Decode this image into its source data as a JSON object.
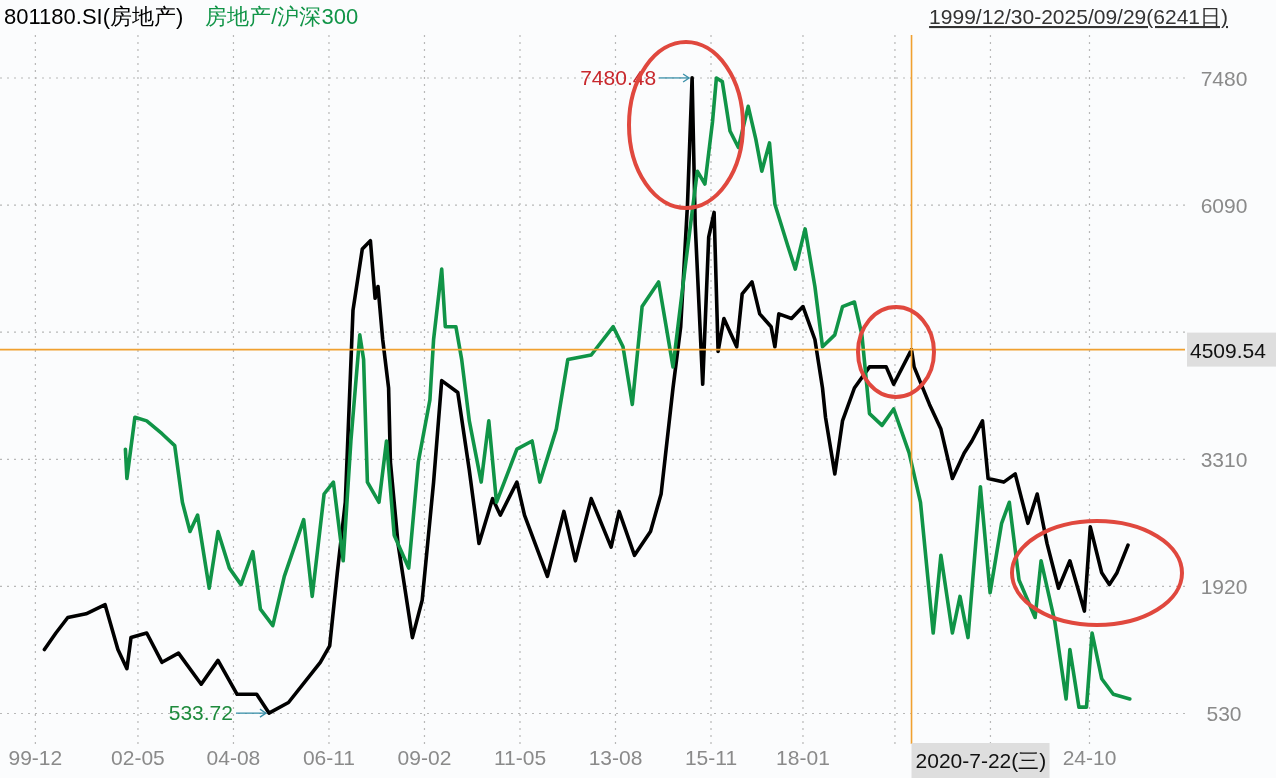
{
  "chart_data": {
    "type": "line",
    "series": [
      {
        "name": "801180.SI(房地产)",
        "color": "#000000",
        "x": [
          "2000-02-18",
          "2000-05-25",
          "2000-09-06",
          "2001-02-11",
          "2001-07-23",
          "2001-11-11",
          "2002-01-28",
          "2002-03-02",
          "2002-07-15",
          "2002-11-25",
          "2003-04-15",
          "2003-10-28",
          "2004-03-20",
          "2004-09-02",
          "2005-02-18",
          "2005-06-02",
          "2005-11-18",
          "2006-08-18",
          "2006-11-07",
          "2007-01-12",
          "2007-03-20",
          "2007-05-25",
          "2007-08-14",
          "2007-10-23",
          "2007-12-02",
          "2007-12-27",
          "2008-02-07",
          "2008-03-27",
          "2008-04-12",
          "2008-06-17",
          "2008-10-19",
          "2009-01-12",
          "2009-04-19",
          "2009-06-27",
          "2009-11-14",
          "2010-02-21",
          "2010-05-14",
          "2010-09-09",
          "2010-11-14",
          "2011-04-05",
          "2011-06-09",
          "2011-12-24",
          "2012-05-14",
          "2012-08-21",
          "2013-01-05",
          "2013-06-24",
          "2013-09-02",
          "2014-01-12",
          "2014-05-28",
          "2014-08-28",
          "2014-12-09",
          "2015-02-14",
          "2015-04-12",
          "2015-05-21",
          "2015-06-17",
          "2015-08-21",
          "2015-10-12",
          "2015-11-28",
          "2016-01-01",
          "2016-02-21",
          "2016-06-09",
          "2016-07-26",
          "2016-10-19",
          "2016-12-24",
          "2017-04-01",
          "2017-05-03",
          "2017-06-06",
          "2017-09-24",
          "2018-01-01",
          "2018-04-12",
          "2018-06-17",
          "2018-07-12",
          "2018-10-01",
          "2018-12-06",
          "2019-03-17",
          "2019-07-26",
          "2019-12-17",
          "2020-02-21",
          "2020-07-22",
          "2020-08-14",
          "2020-12-24",
          "2021-04-01",
          "2021-07-08",
          "2021-10-19",
          "2021-12-24",
          "2022-03-24",
          "2022-05-11",
          "2022-09-24",
          "2023-01-01",
          "2023-04-19",
          "2023-07-08",
          "2023-10-01",
          "2024-01-08",
          "2024-04-15",
          "2024-08-18",
          "2024-10-08",
          "2025-01-15",
          "2025-03-20",
          "2025-05-25",
          "2025-08-28"
        ],
        "values": [
          1230,
          1410,
          1580,
          1620,
          1720,
          1230,
          1020,
          1360,
          1410,
          1090,
          1190,
          850,
          1110,
          740,
          740,
          533.72,
          650,
          1090,
          1270,
          2070,
          2840,
          4940,
          5610,
          5700,
          5070,
          5200,
          4620,
          4090,
          3280,
          2390,
          1360,
          1770,
          3060,
          4170,
          4040,
          3190,
          2390,
          2880,
          2700,
          3060,
          2700,
          2030,
          2740,
          2200,
          2880,
          2350,
          2740,
          2260,
          2520,
          2930,
          4090,
          4760,
          6100,
          7480.48,
          5880,
          4130,
          5740,
          6010,
          4490,
          4850,
          4540,
          5120,
          5250,
          4900,
          4760,
          4540,
          4900,
          4850,
          4980,
          4620,
          4090,
          3770,
          3150,
          3730,
          4090,
          4320,
          4320,
          4130,
          4509.54,
          4320,
          3910,
          3640,
          3100,
          3380,
          3510,
          3730,
          3100,
          3060,
          3150,
          2610,
          2930,
          2390,
          1900,
          2200,
          1650,
          2570,
          2070,
          1940,
          2070,
          2370
        ]
      },
      {
        "name": "房地产/沪深300",
        "color": "#109447",
        "x": [
          "2002-01-15",
          "2002-01-28",
          "2002-04-05",
          "2002-07-15",
          "2002-11-25",
          "2003-03-13",
          "2003-05-18",
          "2003-07-23",
          "2003-09-27",
          "2004-01-05",
          "2004-03-20",
          "2004-06-27",
          "2004-10-05",
          "2005-01-15",
          "2005-03-20",
          "2005-07-05",
          "2005-10-12",
          "2006-03-27",
          "2006-06-09",
          "2006-09-20",
          "2006-12-09",
          "2007-03-02",
          "2007-05-07",
          "2007-07-23",
          "2007-08-25",
          "2007-09-27",
          "2008-01-05",
          "2008-03-09",
          "2008-05-14",
          "2008-09-17",
          "2008-12-09",
          "2009-03-17",
          "2009-04-19",
          "2009-06-27",
          "2009-07-28",
          "2009-10-28",
          "2009-12-17",
          "2010-02-21",
          "2010-06-02",
          "2010-08-07",
          "2010-10-12",
          "2011-04-05",
          "2011-08-14",
          "2011-10-19",
          "2012-03-09",
          "2012-06-17",
          "2013-01-05",
          "2013-07-12",
          "2013-10-05",
          "2013-12-24",
          "2014-03-17",
          "2014-08-07",
          "2014-12-09",
          "2015-03-24",
          "2015-07-05",
          "2015-09-09",
          "2015-11-14",
          "2015-12-17",
          "2016-02-07",
          "2016-04-12",
          "2016-06-24",
          "2016-09-17",
          "2016-11-21",
          "2017-01-12",
          "2017-03-17",
          "2017-05-03",
          "2017-08-21",
          "2017-10-26",
          "2018-01-19",
          "2018-04-12",
          "2018-06-17",
          "2018-10-01",
          "2018-12-06",
          "2019-03-17",
          "2019-05-21",
          "2019-07-26",
          "2019-11-11",
          "2020-02-21",
          "2020-07-01",
          "2020-10-08",
          "2021-01-26",
          "2021-04-01",
          "2021-07-08",
          "2021-09-13",
          "2021-11-21",
          "2022-03-06",
          "2022-05-28",
          "2022-09-06",
          "2022-11-11",
          "2023-02-03",
          "2023-06-20",
          "2023-08-11",
          "2023-12-06",
          "2024-03-13",
          "2024-04-15",
          "2024-07-01",
          "2024-09-06",
          "2024-10-23",
          "2025-01-15",
          "2025-04-23",
          "2025-09-13"
        ],
        "values": [
          3420,
          3100,
          3770,
          3730,
          3590,
          3460,
          2840,
          2520,
          2700,
          1900,
          2520,
          2120,
          1940,
          2300,
          1670,
          1490,
          2030,
          2650,
          1810,
          2930,
          3060,
          2200,
          3510,
          4670,
          4400,
          3060,
          2840,
          3510,
          2480,
          2120,
          3280,
          3960,
          4620,
          5390,
          4760,
          4760,
          4400,
          3730,
          3060,
          3730,
          2840,
          3420,
          3510,
          3060,
          3640,
          4400,
          4450,
          4760,
          4540,
          3910,
          4980,
          5250,
          4320,
          5430,
          6460,
          6320,
          7000,
          7480,
          7440,
          6900,
          6720,
          7170,
          6810,
          6460,
          6770,
          6100,
          5650,
          5390,
          5830,
          5200,
          4540,
          4670,
          4980,
          5030,
          4670,
          3810,
          3680,
          3860,
          3380,
          2840,
          1410,
          2260,
          1410,
          1810,
          1360,
          3010,
          1850,
          2610,
          2840,
          1990,
          1580,
          2200,
          1540,
          690,
          1230,
          600,
          600,
          1410,
          910,
          740,
          690
        ]
      }
    ],
    "xlim": [
      "1999-02-01",
      "2027-01-01"
    ],
    "xticks": [
      {
        "value": "1999-12-01",
        "label": "99-12"
      },
      {
        "value": "2002-05-01",
        "label": "02-05"
      },
      {
        "value": "2004-08-01",
        "label": "04-08"
      },
      {
        "value": "2006-11-01",
        "label": "06-11"
      },
      {
        "value": "2009-02-01",
        "label": "09-02"
      },
      {
        "value": "2011-05-01",
        "label": "11-05"
      },
      {
        "value": "2013-08-01",
        "label": "13-08"
      },
      {
        "value": "2015-11-01",
        "label": "15-11"
      },
      {
        "value": "2018-01-01",
        "label": "18-01"
      },
      {
        "value": "2020-03-01",
        "label": null
      },
      {
        "value": "2022-06-01",
        "label": null
      },
      {
        "value": "2024-10-01",
        "label": "24-10"
      }
    ],
    "ylim": [
      240,
      7950
    ],
    "yticks": [
      530,
      1920,
      3310,
      {
        "value": 4700,
        "label": null
      },
      6090,
      7480
    ],
    "grid": true,
    "ref_lines": [
      {
        "axis": "y",
        "value": 4509.54,
        "label": "4509.54",
        "color": "#f0a030"
      },
      {
        "axis": "x",
        "value": "2020-07-22",
        "label": "2020-7-22(三)",
        "color": "#f0a030"
      }
    ],
    "annotations": [
      "1999/12/30-2025/09/29(6241日)",
      {
        "text": "7480.48",
        "x": "2015-05-21",
        "y": 7480.48
      },
      {
        "text": "533.72",
        "x": "2005-06-02",
        "y": 533.72
      }
    ]
  }
}
